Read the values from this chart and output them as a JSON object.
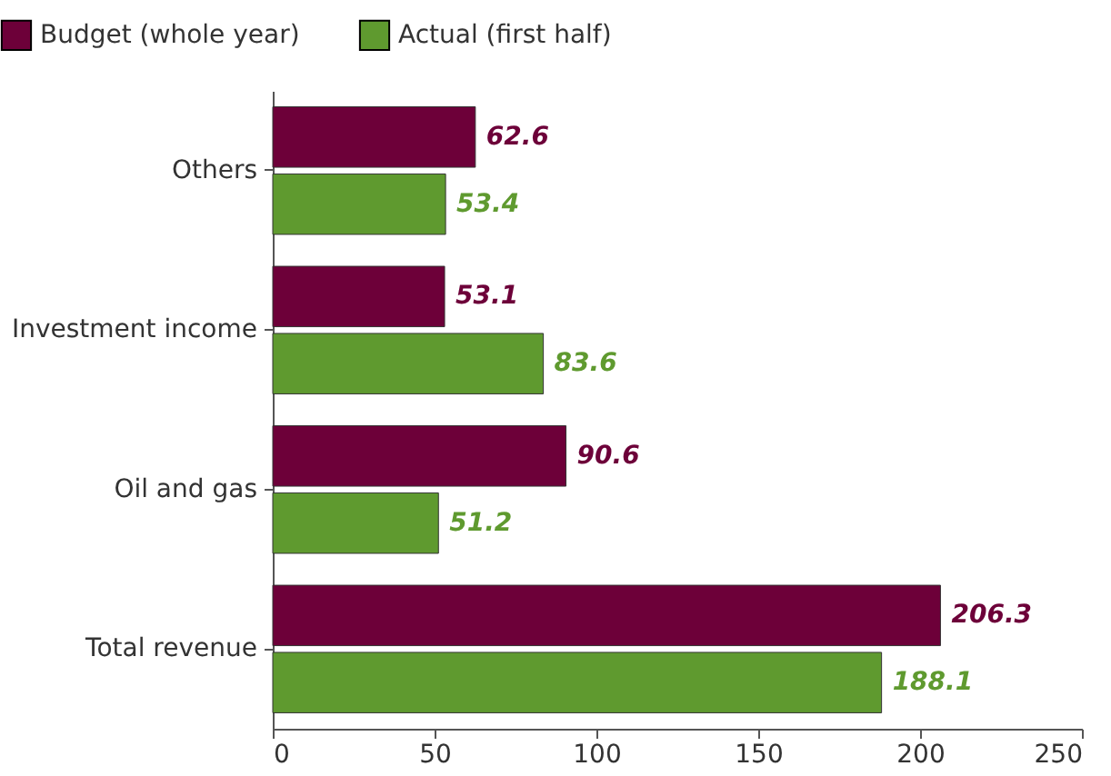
{
  "chart_data": {
    "type": "bar",
    "orientation": "horizontal",
    "categories": [
      "Others",
      "Investment income",
      "Oil and gas",
      "Total revenue"
    ],
    "series": [
      {
        "name": "Budget (whole year)",
        "color": "#6d0039",
        "values": [
          62.6,
          53.1,
          90.6,
          206.3
        ]
      },
      {
        "name": "Actual (first half)",
        "color": "#5f9a2f",
        "values": [
          53.4,
          83.6,
          51.2,
          188.1
        ]
      }
    ],
    "xlim": [
      0,
      250
    ],
    "xticks": [
      0,
      50,
      100,
      150,
      200,
      250
    ],
    "grid": false,
    "legend": "top left",
    "data_labels": true
  }
}
